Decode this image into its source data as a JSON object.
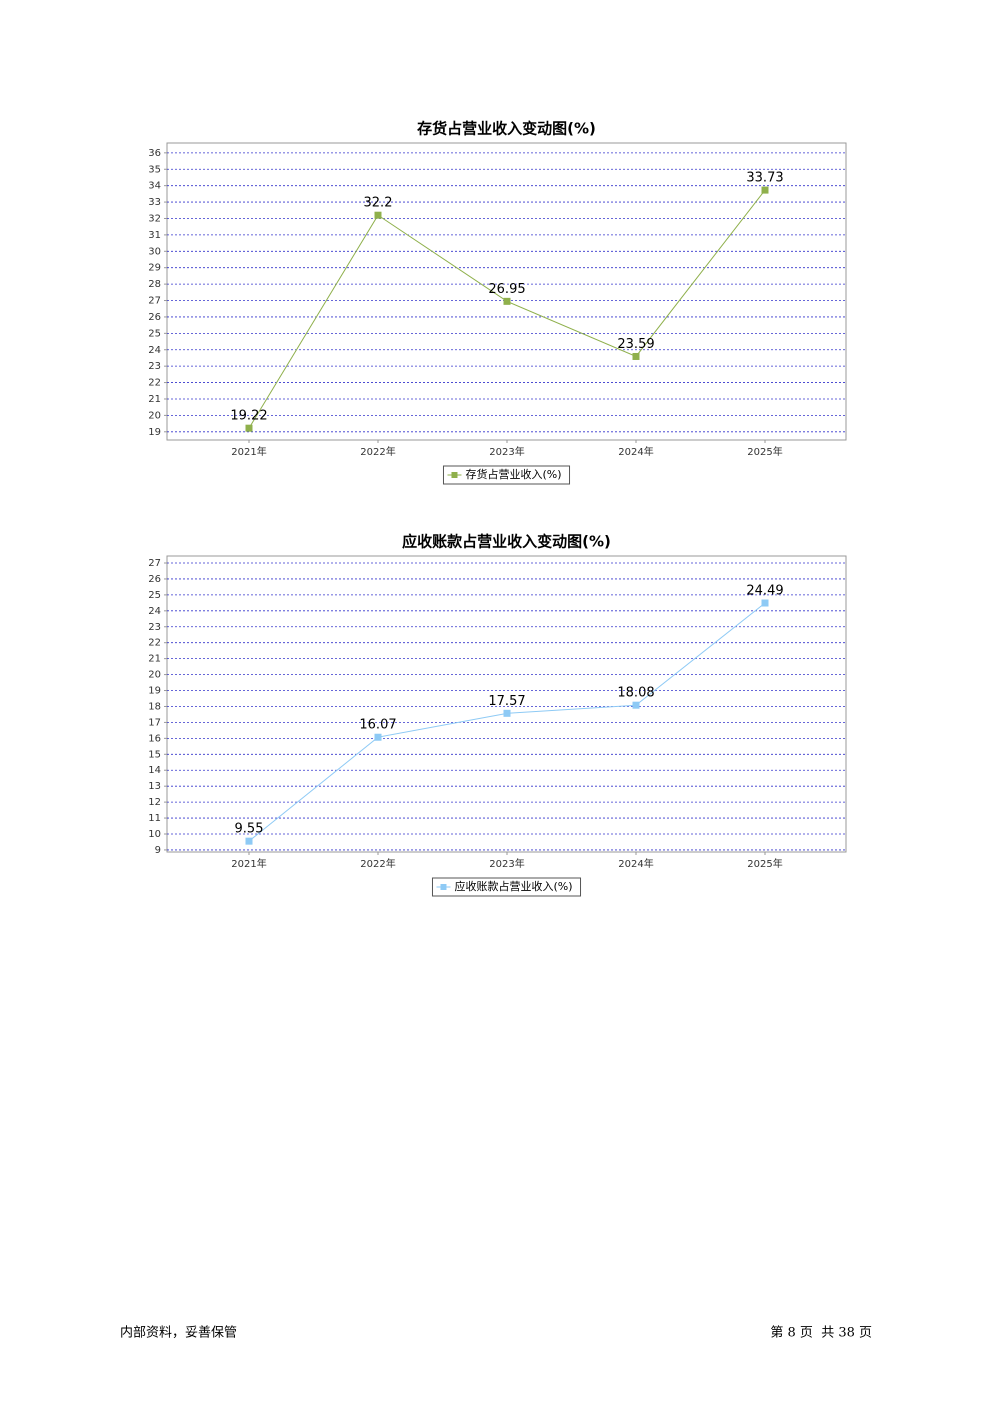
{
  "chart_data": [
    {
      "type": "line",
      "title": "存货占营业收入变动图(%)",
      "categories": [
        "2021年",
        "2022年",
        "2023年",
        "2024年",
        "2025年"
      ],
      "series": [
        {
          "name": "存货占营业收入(%)",
          "color": "#8fb04c",
          "values": [
            19.22,
            32.2,
            26.95,
            23.59,
            33.73
          ]
        }
      ],
      "ylim": [
        18.5,
        36.6
      ],
      "yticks": [
        19,
        20,
        21,
        22,
        23,
        24,
        25,
        26,
        27,
        28,
        29,
        30,
        31,
        32,
        33,
        34,
        35,
        36
      ],
      "grid": true,
      "legend": "bottom"
    },
    {
      "type": "line",
      "title": "应收账款占营业收入变动图(%)",
      "categories": [
        "2021年",
        "2022年",
        "2023年",
        "2024年",
        "2025年"
      ],
      "series": [
        {
          "name": "应收账款占营业收入(%)",
          "color": "#8ecaf5",
          "values": [
            9.55,
            16.07,
            17.57,
            18.08,
            24.49
          ]
        }
      ],
      "ylim": [
        8.87,
        27.44
      ],
      "yticks": [
        9,
        10,
        11,
        12,
        13,
        14,
        15,
        16,
        17,
        18,
        19,
        20,
        21,
        22,
        23,
        24,
        25,
        26,
        27
      ],
      "grid": true,
      "legend": "bottom"
    }
  ],
  "footer": {
    "left": "内部资料，妥善保管",
    "right": "第 8 页  共 38 页"
  }
}
